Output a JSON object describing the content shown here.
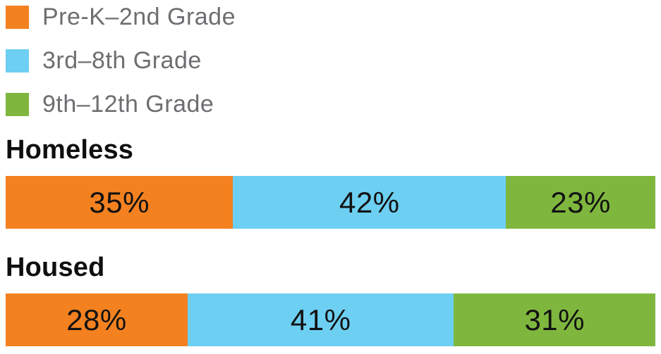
{
  "chart_data": {
    "type": "bar",
    "orientation": "horizontal-stacked",
    "title": "",
    "categories": [
      "Homeless",
      "Housed"
    ],
    "series": [
      {
        "name": "Pre-K–2nd Grade",
        "color": "#F48120",
        "values": [
          35,
          28
        ],
        "labels": [
          "35%",
          "28%"
        ]
      },
      {
        "name": "3rd–8th Grade",
        "color": "#6DCFF2",
        "values": [
          42,
          41
        ],
        "labels": [
          "42%",
          "41%"
        ]
      },
      {
        "name": "9th–12th Grade",
        "color": "#7FB73E",
        "values": [
          23,
          31
        ],
        "labels": [
          "23%",
          "31%"
        ]
      }
    ],
    "value_unit": "percent",
    "xlim": [
      0,
      100
    ],
    "legend_position": "top-left",
    "grid": false,
    "axes_shown": false
  },
  "styles": {
    "background": "#FFFFFF",
    "legend_text_color": "#6D6E71",
    "heading_text_color": "#0F0F0F",
    "segment_label_color": "#121212"
  }
}
